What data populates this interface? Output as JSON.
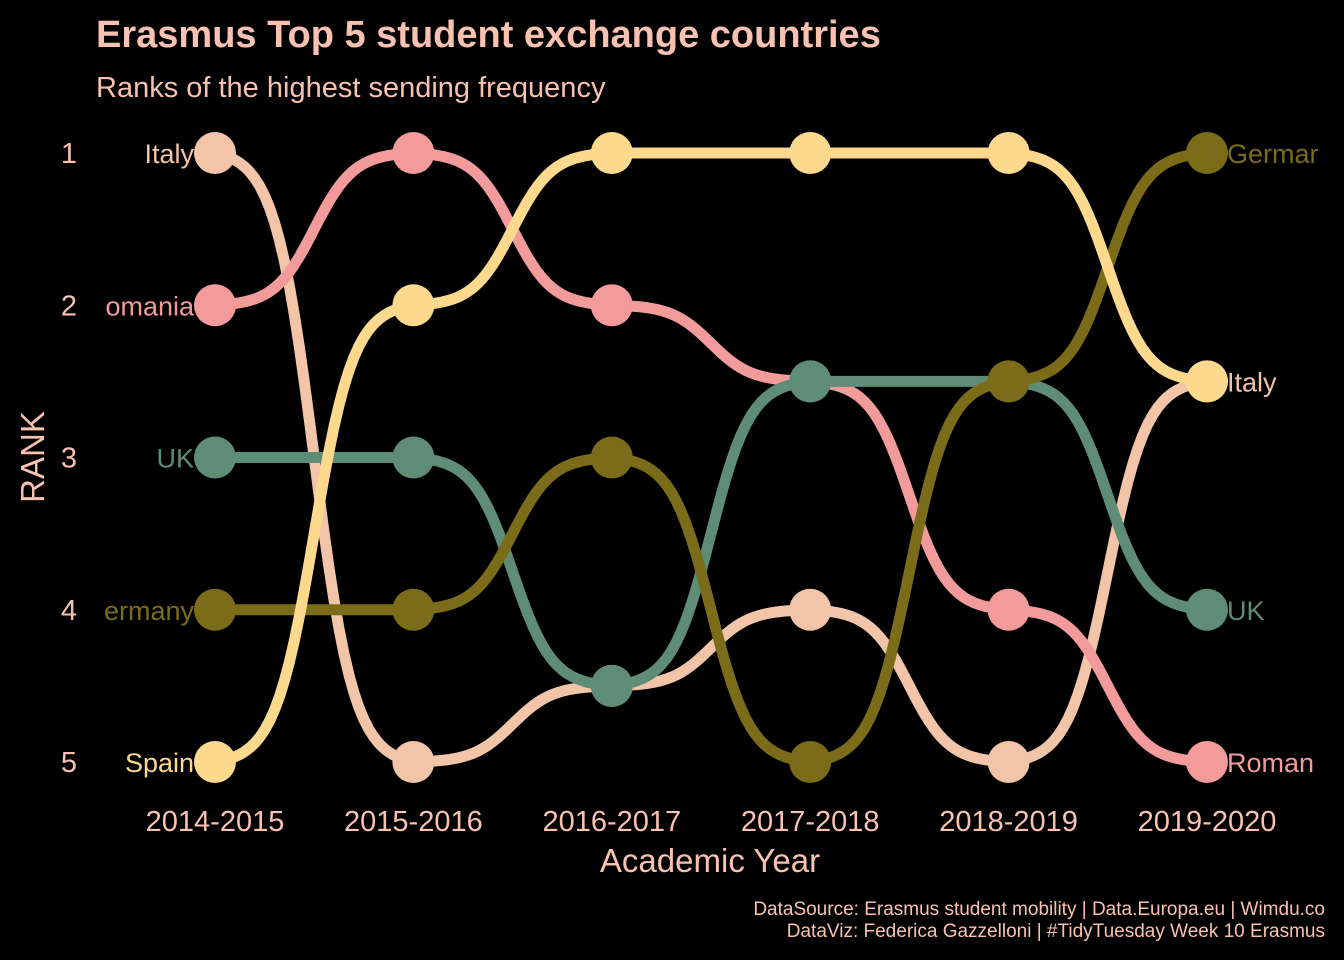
{
  "chart_data": {
    "type": "line",
    "subtype": "bump",
    "title": "Erasmus Top 5 student exchange countries",
    "subtitle": "Ranks of the highest sending frequency",
    "xlabel": "Academic Year",
    "ylabel": "RANK",
    "x": [
      "2014-2015",
      "2015-2016",
      "2016-2017",
      "2017-2018",
      "2018-2019",
      "2019-2020"
    ],
    "y_ticks": [
      "1",
      "2",
      "3",
      "4",
      "5"
    ],
    "y_reversed": true,
    "series": [
      {
        "name": "Italy",
        "color": "#F2C4A8",
        "values": [
          1,
          5,
          4.5,
          4,
          5,
          2.5
        ],
        "start_label": "Italy",
        "end_label": "Italy"
      },
      {
        "name": "Romania",
        "color": "#F29B9A",
        "values": [
          2,
          1,
          2,
          2.5,
          4,
          5
        ],
        "start_label": "omania",
        "end_label": "Roman"
      },
      {
        "name": "UK",
        "color": "#5E8C76",
        "values": [
          3,
          3,
          4.5,
          2.5,
          2.5,
          4
        ],
        "start_label": "UK",
        "end_label": "UK"
      },
      {
        "name": "Germany",
        "color": "#7A6C18",
        "values": [
          4,
          4,
          3,
          5,
          2.5,
          1
        ],
        "start_label": "ermany",
        "end_label": "Germar"
      },
      {
        "name": "Spain",
        "color": "#FDD98E",
        "values": [
          5,
          2,
          1,
          1,
          1,
          2.5
        ],
        "start_label": "Spain",
        "end_label": ""
      }
    ],
    "ylim": [
      1,
      5
    ],
    "grid": false,
    "legend": "none",
    "text_color": "#F9C2B0",
    "background": "#000000",
    "caption_lines": [
      "DataSource: Erasmus student mobility | Data.Europa.eu | Wimdu.co",
      "DataViz: Federica Gazzelloni | #TidyTuesday Week 10 Erasmus"
    ]
  }
}
